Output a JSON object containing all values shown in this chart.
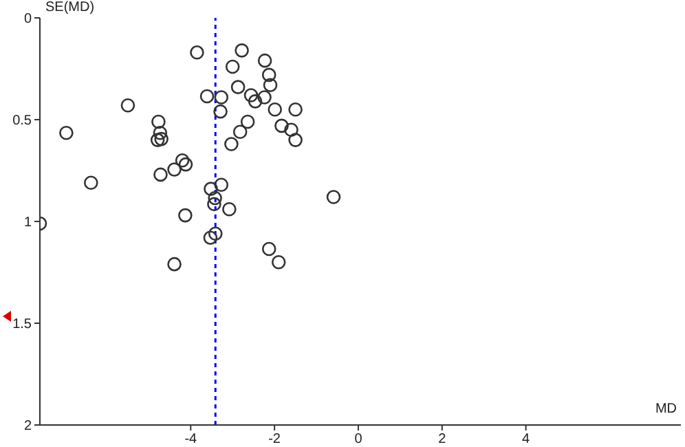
{
  "chart_data": {
    "type": "scatter",
    "xlabel": "MD",
    "ylabel": "SE(MD)",
    "marker": "circle",
    "xlim": [
      -7.6,
      7.7
    ],
    "xticks": [
      -4,
      -2,
      0,
      2,
      4
    ],
    "ylim": [
      2,
      0
    ],
    "yticks": [
      0,
      0.5,
      1,
      1.5,
      2
    ],
    "ref_lines": [
      {
        "axis": "x",
        "value": -3.41,
        "color": "#0000ff",
        "line_style": "dashed"
      }
    ],
    "series": [
      {
        "color": "#333333",
        "x": [
          -3.85,
          -2.78,
          -2.23,
          -3.0,
          -2.13,
          -2.1,
          -2.87,
          -3.61,
          -3.27,
          -2.56,
          -2.46,
          -2.24,
          -5.5,
          -3.29,
          -1.99,
          -1.5,
          -4.77,
          -2.64,
          -6.97,
          -1.83,
          -1.6,
          -2.82,
          -4.73,
          -4.79,
          -4.7,
          -1.5,
          -3.03,
          -4.2,
          -4.12,
          -4.39,
          -4.72,
          -6.38,
          -3.27,
          -3.52,
          -3.42,
          -3.44,
          -0.59,
          -3.08,
          -4.13,
          -7.6,
          -3.53,
          -3.41,
          -2.13,
          -1.9,
          -4.39
        ],
        "values": [
          0.17,
          0.16,
          0.21,
          0.24,
          0.28,
          0.33,
          0.34,
          0.385,
          0.39,
          0.38,
          0.41,
          0.39,
          0.43,
          0.46,
          0.45,
          0.45,
          0.51,
          0.51,
          0.565,
          0.53,
          0.55,
          0.56,
          0.565,
          0.6,
          0.595,
          0.6,
          0.62,
          0.7,
          0.72,
          0.745,
          0.77,
          0.81,
          0.82,
          0.84,
          0.885,
          0.915,
          0.88,
          0.94,
          0.97,
          1.01,
          1.08,
          1.06,
          1.135,
          1.2,
          1.21
        ]
      }
    ]
  }
}
